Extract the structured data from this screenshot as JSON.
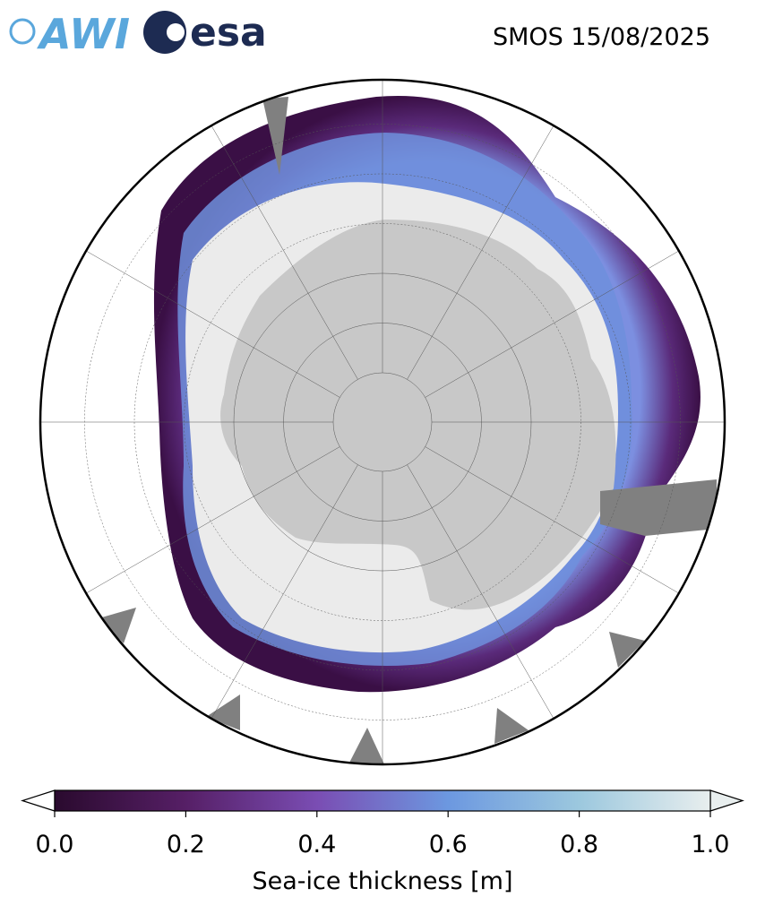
{
  "header": {
    "logos": [
      "AWI",
      "esa"
    ],
    "title": "SMOS 15/08/2025"
  },
  "colorbar": {
    "label": "Sea-ice thickness [m]",
    "range": [
      0,
      1
    ],
    "ticks": [
      {
        "value": 0,
        "label": "0.0"
      },
      0.2,
      0.4,
      0.6,
      0.8,
      {
        "value": 1,
        "label": "1.0"
      }
    ]
  }
}
